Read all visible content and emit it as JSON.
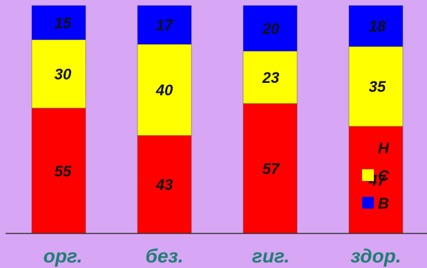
{
  "chart_data": {
    "type": "bar",
    "stacked": true,
    "categories": [
      "орг.",
      "без.",
      "гиг.",
      "здор."
    ],
    "series": [
      {
        "name": "Н",
        "color": "#ff0000",
        "values": [
          55,
          43,
          57,
          47
        ]
      },
      {
        "name": "С",
        "color": "#ffff00",
        "values": [
          30,
          40,
          23,
          35
        ]
      },
      {
        "name": "В",
        "color": "#0000ff",
        "values": [
          15,
          17,
          20,
          18
        ]
      }
    ],
    "legend_position": "bottom-right inside",
    "grid": false
  }
}
